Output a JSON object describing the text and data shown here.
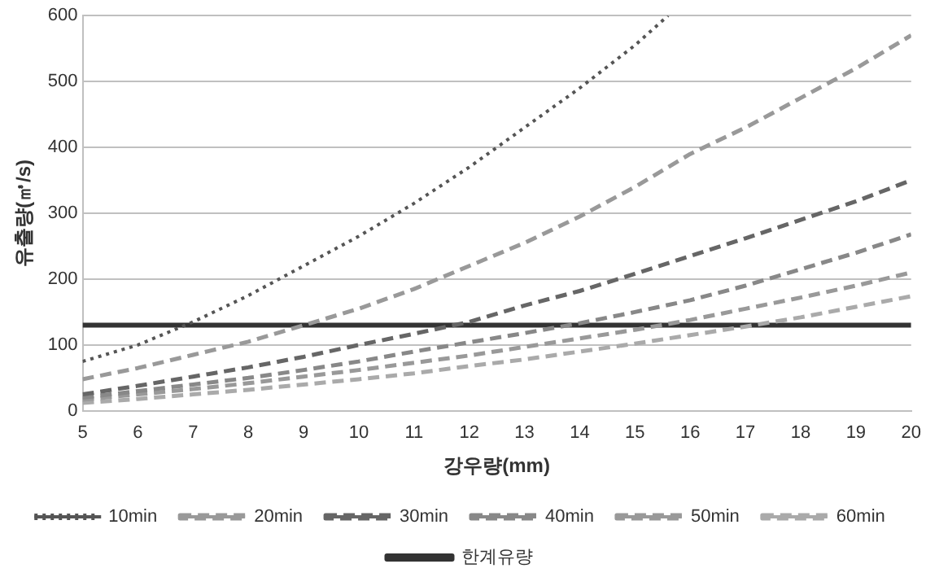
{
  "chart_data": {
    "type": "line",
    "xlabel": "강우량(mm)",
    "ylabel": "유출량(㎥/s)",
    "x": [
      5,
      6,
      7,
      8,
      9,
      10,
      11,
      12,
      13,
      14,
      15,
      16,
      17,
      18,
      19,
      20
    ],
    "xlim": [
      5,
      20
    ],
    "xticks": [
      5,
      6,
      7,
      8,
      9,
      10,
      11,
      12,
      13,
      14,
      15,
      16,
      17,
      18,
      19,
      20
    ],
    "ylim": [
      0,
      600
    ],
    "yticks": [
      0,
      100,
      200,
      300,
      400,
      500,
      600
    ],
    "grid": "y",
    "legend": "bottom",
    "marker": "none",
    "series": [
      {
        "name": "10min",
        "color": "#555555",
        "line_style": "dotted",
        "x": [
          5,
          6,
          7,
          8,
          9,
          10,
          11,
          12,
          13,
          14,
          15,
          15.6
        ],
        "values": [
          75,
          100,
          135,
          175,
          220,
          265,
          315,
          370,
          430,
          490,
          555,
          600
        ]
      },
      {
        "name": "20min",
        "color": "#999999",
        "line_style": "dashed",
        "values": [
          48,
          65,
          85,
          105,
          130,
          155,
          185,
          220,
          255,
          295,
          340,
          390,
          430,
          475,
          520,
          570
        ]
      },
      {
        "name": "30min",
        "color": "#666666",
        "line_style": "dashed",
        "values": [
          25,
          38,
          52,
          66,
          82,
          100,
          117,
          135,
          160,
          182,
          208,
          235,
          262,
          290,
          318,
          350
        ]
      },
      {
        "name": "40min",
        "color": "#888888",
        "line_style": "dashed",
        "values": [
          20,
          30,
          40,
          50,
          62,
          75,
          90,
          104,
          118,
          133,
          150,
          168,
          190,
          215,
          240,
          268
        ]
      },
      {
        "name": "50min",
        "color": "#999999",
        "line_style": "dashed",
        "values": [
          17,
          25,
          33,
          42,
          52,
          62,
          73,
          84,
          97,
          110,
          123,
          138,
          155,
          172,
          190,
          210
        ]
      },
      {
        "name": "60min",
        "color": "#aaaaaa",
        "line_style": "dashed",
        "values": [
          12,
          18,
          25,
          32,
          40,
          48,
          57,
          68,
          78,
          90,
          102,
          115,
          128,
          142,
          158,
          174
        ]
      },
      {
        "name": "한계유량",
        "color": "#333333",
        "line_style": "solid",
        "values": [
          130,
          130,
          130,
          130,
          130,
          130,
          130,
          130,
          130,
          130,
          130,
          130,
          130,
          130,
          130,
          130
        ]
      }
    ]
  }
}
